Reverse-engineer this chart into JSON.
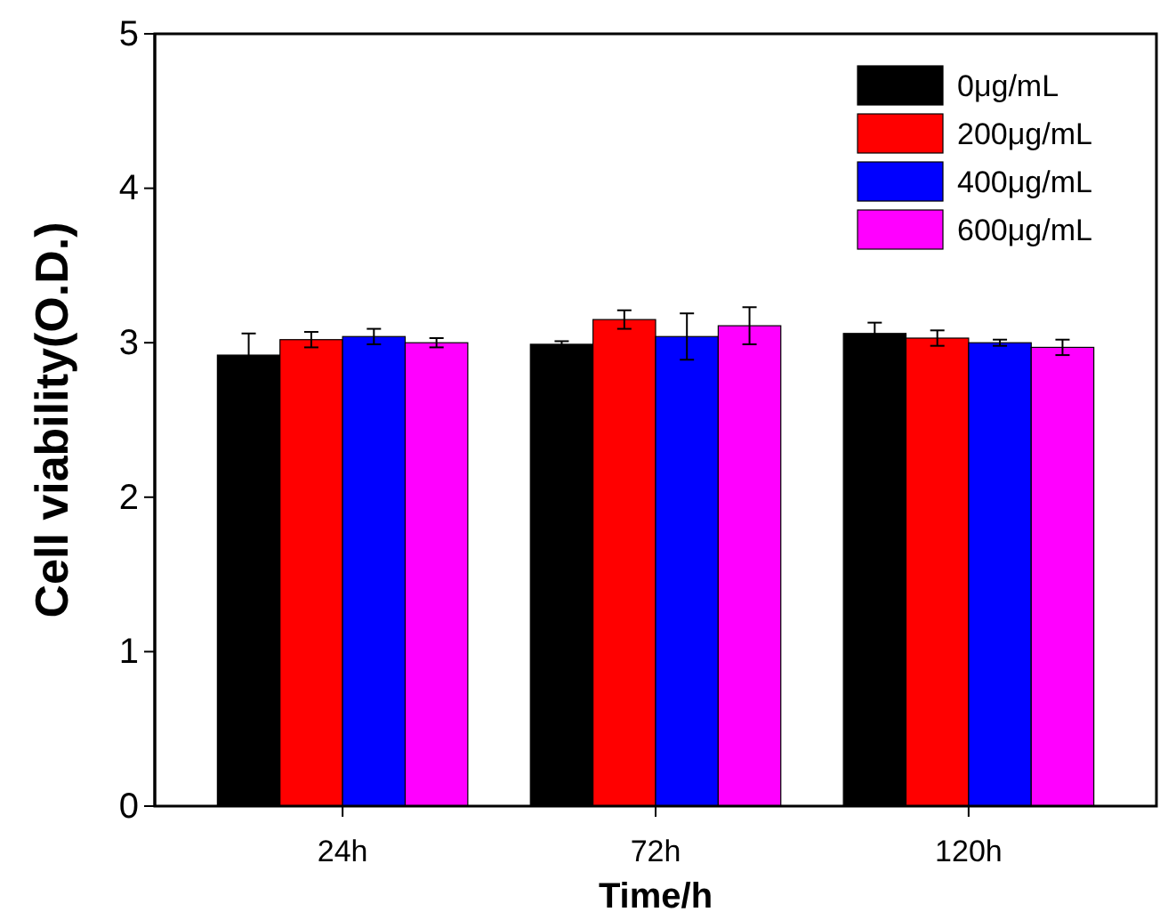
{
  "chart_data": {
    "type": "bar",
    "xlabel": "Time/h",
    "ylabel": "Cell viability(O.D.)",
    "categories": [
      "24h",
      "72h",
      "120h"
    ],
    "series": [
      {
        "name": "0μg/mL",
        "color": "#000000",
        "values": [
          2.92,
          2.99,
          3.06
        ],
        "errors": [
          0.14,
          0.02,
          0.07
        ]
      },
      {
        "name": "200μg/mL",
        "color": "#ff0000",
        "values": [
          3.02,
          3.15,
          3.03
        ],
        "errors": [
          0.05,
          0.06,
          0.05
        ]
      },
      {
        "name": "400μg/mL",
        "color": "#0000ff",
        "values": [
          3.04,
          3.04,
          3.0
        ],
        "errors": [
          0.05,
          0.15,
          0.02
        ]
      },
      {
        "name": "600μg/mL",
        "color": "#ff00ff",
        "values": [
          3.0,
          3.11,
          2.97
        ],
        "errors": [
          0.03,
          0.12,
          0.05
        ]
      }
    ],
    "ylim": [
      0,
      5
    ],
    "yticks": [
      0,
      1,
      2,
      3,
      4,
      5
    ],
    "legend": "top right"
  }
}
